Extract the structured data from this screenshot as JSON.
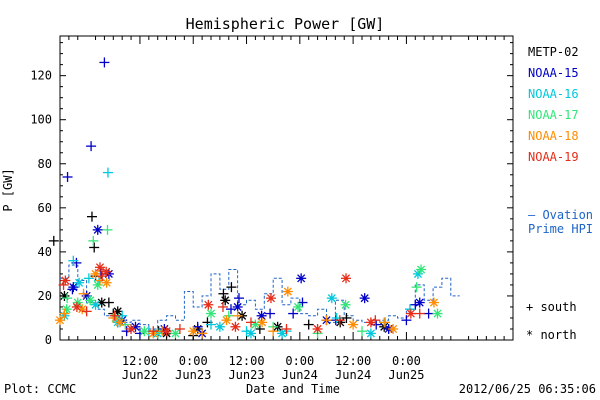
{
  "chart_data": {
    "type": "scatter",
    "title": "Hemispheric Power [GW]",
    "xlabel": "Date and Time",
    "ylabel": "P [GW]",
    "xlim": [
      -18,
      84
    ],
    "ylim": [
      0,
      138
    ],
    "yticks": [
      0,
      20,
      40,
      60,
      80,
      100,
      120
    ],
    "xticks": [
      {
        "x": 0,
        "line1": "12:00",
        "line2": "Jun22"
      },
      {
        "x": 12,
        "line1": "0:00",
        "line2": "Jun23"
      },
      {
        "x": 24,
        "line1": "12:00",
        "line2": "Jun23"
      },
      {
        "x": 36,
        "line1": "0:00",
        "line2": "Jun24"
      },
      {
        "x": 48,
        "line1": "12:00",
        "line2": "Jun24"
      },
      {
        "x": 60,
        "line1": "0:00",
        "line2": "Jun25"
      }
    ],
    "x_unit_note": "hours relative to 2012-06-22 12:00",
    "legend_position": "right",
    "series": [
      {
        "name": "METP-02",
        "color": "#000000",
        "south": [
          [
            -19.4,
            45
          ],
          [
            -10.8,
            56
          ],
          [
            -10.3,
            42
          ],
          [
            -7,
            17
          ],
          [
            -10,
            29
          ],
          [
            -6,
            12
          ],
          [
            4.2,
            4
          ],
          [
            12,
            2
          ],
          [
            15.2,
            8
          ],
          [
            18.8,
            21
          ],
          [
            20.6,
            24
          ],
          [
            27,
            5
          ],
          [
            38,
            7
          ],
          [
            46.5,
            10
          ]
        ],
        "north": [
          [
            -17,
            20
          ],
          [
            -8.6,
            17
          ],
          [
            -5,
            13
          ],
          [
            6,
            3
          ],
          [
            13,
            5
          ],
          [
            19.2,
            18
          ],
          [
            23,
            11
          ],
          [
            31,
            6
          ],
          [
            45.1,
            8
          ],
          [
            55,
            6
          ]
        ]
      },
      {
        "name": "NOAA-15",
        "color": "#0000c8",
        "south": [
          [
            -16.3,
            74
          ],
          [
            -11,
            88
          ],
          [
            -8,
            126
          ],
          [
            -14.3,
            35
          ],
          [
            -15.2,
            23
          ],
          [
            -8.8,
            30
          ],
          [
            -5,
            8
          ],
          [
            -3,
            4
          ],
          [
            0,
            3
          ],
          [
            13,
            6
          ],
          [
            20.5,
            14
          ],
          [
            22.3,
            19
          ],
          [
            29.3,
            12
          ],
          [
            34.5,
            12
          ],
          [
            36.6,
            17
          ],
          [
            44.1,
            9
          ],
          [
            53.2,
            7
          ],
          [
            60,
            9
          ],
          [
            62,
            16
          ],
          [
            65,
            12
          ]
        ],
        "north": [
          [
            -15,
            24
          ],
          [
            -12,
            20
          ],
          [
            -9.5,
            50
          ],
          [
            -7,
            30
          ],
          [
            -4,
            9
          ],
          [
            -1,
            6
          ],
          [
            5.5,
            5
          ],
          [
            14,
            3
          ],
          [
            22,
            15
          ],
          [
            27.4,
            11
          ],
          [
            36.3,
            28
          ],
          [
            42,
            9
          ],
          [
            50.6,
            19
          ],
          [
            56,
            5
          ],
          [
            63,
            17
          ]
        ]
      },
      {
        "name": "NOAA-16",
        "color": "#00c8dc",
        "south": [
          [
            -15,
            36
          ],
          [
            -11.5,
            28
          ],
          [
            -9.2,
            27
          ],
          [
            -7.2,
            76
          ],
          [
            -4,
            11
          ],
          [
            2,
            4
          ],
          [
            16,
            7
          ],
          [
            24,
            4
          ],
          [
            33,
            4
          ],
          [
            44.3,
            10
          ],
          [
            55.2,
            8
          ],
          [
            60.8,
            14
          ]
        ],
        "north": [
          [
            -17,
            11
          ],
          [
            -13.7,
            26
          ],
          [
            -10,
            16
          ],
          [
            -5,
            8
          ],
          [
            4,
            3
          ],
          [
            18,
            6
          ],
          [
            25,
            3
          ],
          [
            32,
            3
          ],
          [
            43.2,
            19
          ],
          [
            52,
            3
          ],
          [
            62.6,
            30
          ]
        ]
      },
      {
        "name": "NOAA-17",
        "color": "#32e678",
        "south": [
          [
            -16.4,
            19
          ],
          [
            -10.5,
            45
          ],
          [
            -7.3,
            50
          ],
          [
            -3.3,
            7
          ],
          [
            4,
            3
          ],
          [
            20,
            11
          ],
          [
            30,
            6
          ],
          [
            40,
            3
          ],
          [
            50,
            4
          ],
          [
            62.3,
            24
          ]
        ],
        "north": [
          [
            -16.5,
            14
          ],
          [
            -14,
            17
          ],
          [
            -11.2,
            18
          ],
          [
            -9.5,
            25
          ],
          [
            -5.5,
            10
          ],
          [
            1,
            4
          ],
          [
            8,
            3
          ],
          [
            16,
            12
          ],
          [
            26,
            7
          ],
          [
            35.6,
            15
          ],
          [
            46.3,
            16
          ],
          [
            63.3,
            32
          ],
          [
            67,
            12
          ]
        ]
      },
      {
        "name": "NOAA-18",
        "color": "#ff8c00",
        "south": [
          [
            -17,
            12
          ],
          [
            -12.7,
            21
          ],
          [
            -9,
            27
          ],
          [
            -6,
            10
          ],
          [
            5,
            4
          ],
          [
            14,
            3
          ],
          [
            22,
            11
          ],
          [
            30,
            4
          ],
          [
            42,
            9
          ],
          [
            55,
            8
          ]
        ],
        "north": [
          [
            -18,
            9
          ],
          [
            -13,
            14
          ],
          [
            -10,
            30
          ],
          [
            -7.5,
            26
          ],
          [
            -4.5,
            8
          ],
          [
            3,
            3
          ],
          [
            12,
            4
          ],
          [
            19.5,
            9
          ],
          [
            27.5,
            8
          ],
          [
            33.3,
            22
          ],
          [
            48,
            7
          ],
          [
            57,
            5
          ],
          [
            66.2,
            17
          ]
        ]
      },
      {
        "name": "NOAA-19",
        "color": "#e62d19",
        "south": [
          [
            -17.2,
            25
          ],
          [
            -12,
            13
          ],
          [
            -8.5,
            29
          ],
          [
            -5.7,
            11
          ],
          [
            3,
            4
          ],
          [
            9,
            5
          ],
          [
            18.7,
            15
          ],
          [
            25,
            8
          ],
          [
            33,
            5
          ],
          [
            45,
            9
          ],
          [
            53,
            9
          ],
          [
            63,
            12
          ]
        ],
        "north": [
          [
            -16.8,
            27
          ],
          [
            -14.2,
            15
          ],
          [
            -9,
            33
          ],
          [
            -7.6,
            31
          ],
          [
            -2,
            5
          ],
          [
            6,
            4
          ],
          [
            15.4,
            16
          ],
          [
            21.5,
            6
          ],
          [
            29.5,
            19
          ],
          [
            40,
            5
          ],
          [
            46.4,
            28
          ],
          [
            52,
            8
          ],
          [
            61,
            12
          ]
        ]
      }
    ],
    "ovation_prime_hpi": {
      "label_line1": "— Ovation",
      "label_line2": "Prime HPI",
      "color": "#1e64c8",
      "steps": [
        [
          -18,
          28
        ],
        [
          -16,
          34
        ],
        [
          -14,
          27
        ],
        [
          -12,
          17
        ],
        [
          -10,
          14
        ],
        [
          -8,
          11
        ],
        [
          -6,
          10
        ],
        [
          -4,
          8
        ],
        [
          -2,
          9
        ],
        [
          0,
          7
        ],
        [
          2,
          5
        ],
        [
          4,
          9
        ],
        [
          6,
          11
        ],
        [
          8,
          9
        ],
        [
          10,
          22
        ],
        [
          12,
          15
        ],
        [
          14,
          20
        ],
        [
          16,
          30
        ],
        [
          18,
          23
        ],
        [
          20,
          32
        ],
        [
          22,
          16
        ],
        [
          24,
          18
        ],
        [
          26,
          14
        ],
        [
          28,
          21
        ],
        [
          30,
          28
        ],
        [
          32,
          16
        ],
        [
          34,
          19
        ],
        [
          36,
          12
        ],
        [
          38,
          11
        ],
        [
          40,
          14
        ],
        [
          42,
          8
        ],
        [
          44,
          18
        ],
        [
          46,
          11
        ],
        [
          48,
          9
        ],
        [
          50,
          8
        ],
        [
          52,
          7
        ],
        [
          54,
          9
        ],
        [
          56,
          11
        ],
        [
          58,
          10
        ],
        [
          60,
          14
        ],
        [
          62,
          25
        ],
        [
          64,
          18
        ],
        [
          66,
          24
        ],
        [
          68,
          28
        ],
        [
          70,
          20
        ]
      ]
    },
    "marker_key": [
      {
        "symbol": "+",
        "label": "south"
      },
      {
        "symbol": "*",
        "label": "north"
      }
    ]
  },
  "footer": {
    "left": "Plot: CCMC",
    "right": "2012/06/25 06:35:06"
  }
}
